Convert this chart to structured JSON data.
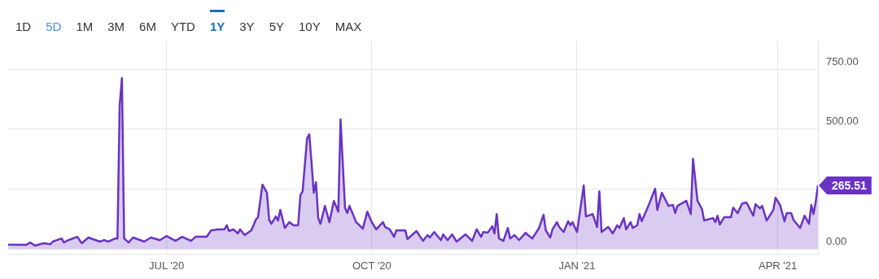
{
  "chart_data": {
    "type": "area",
    "x": [
      "2020-04-21",
      "2020-04-29",
      "2020-05-01",
      "2020-05-03",
      "2020-05-07",
      "2020-05-10",
      "2020-05-11",
      "2020-05-15",
      "2020-05-16",
      "2020-05-18",
      "2020-05-22",
      "2020-05-24",
      "2020-05-27",
      "2020-06-01",
      "2020-06-03",
      "2020-06-05",
      "2020-06-08",
      "2020-06-09",
      "2020-06-10",
      "2020-06-11",
      "2020-06-12",
      "2020-06-14",
      "2020-06-16",
      "2020-06-21",
      "2020-06-24",
      "2020-06-28",
      "2020-07-01",
      "2020-07-03",
      "2020-07-05",
      "2020-07-08",
      "2020-07-12",
      "2020-07-14",
      "2020-07-19",
      "2020-07-21",
      "2020-07-24",
      "2020-07-27",
      "2020-07-28",
      "2020-07-29",
      "2020-07-31",
      "2020-08-02",
      "2020-08-03",
      "2020-08-05",
      "2020-08-08",
      "2020-08-10",
      "2020-08-11",
      "2020-08-13",
      "2020-08-15",
      "2020-08-16",
      "2020-08-17",
      "2020-08-19",
      "2020-08-20",
      "2020-08-21",
      "2020-08-23",
      "2020-08-25",
      "2020-08-27",
      "2020-08-29",
      "2020-08-30",
      "2020-08-31",
      "2020-09-02",
      "2020-09-03",
      "2020-09-04",
      "2020-09-05",
      "2020-09-06",
      "2020-09-07",
      "2020-09-08",
      "2020-09-10",
      "2020-09-12",
      "2020-09-14",
      "2020-09-16",
      "2020-09-17",
      "2020-09-19",
      "2020-09-20",
      "2020-09-21",
      "2020-09-24",
      "2020-09-27",
      "2020-09-29",
      "2020-10-01",
      "2020-10-03",
      "2020-10-06",
      "2020-10-07",
      "2020-10-09",
      "2020-10-11",
      "2020-10-12",
      "2020-10-16",
      "2020-10-17",
      "2020-10-21",
      "2020-10-24",
      "2020-10-26",
      "2020-10-27",
      "2020-10-29",
      "2020-11-01",
      "2020-11-02",
      "2020-11-04",
      "2020-11-06",
      "2020-11-08",
      "2020-11-12",
      "2020-11-15",
      "2020-11-17",
      "2020-11-19",
      "2020-11-20",
      "2020-11-22",
      "2020-11-24",
      "2020-11-25",
      "2020-11-26",
      "2020-11-27",
      "2020-11-29",
      "2020-12-01",
      "2020-12-02",
      "2020-12-04",
      "2020-12-06",
      "2020-12-09",
      "2020-12-10",
      "2020-12-12",
      "2020-12-15",
      "2020-12-17",
      "2020-12-18",
      "2020-12-20",
      "2020-12-21",
      "2020-12-23",
      "2020-12-24",
      "2020-12-26",
      "2020-12-28",
      "2020-12-29",
      "2020-12-30",
      "2021-01-01",
      "2021-01-04",
      "2021-01-05",
      "2021-01-08",
      "2021-01-10",
      "2021-01-11",
      "2021-01-12",
      "2021-01-15",
      "2021-01-17",
      "2021-01-19",
      "2021-01-20",
      "2021-01-22",
      "2021-01-23",
      "2021-01-25",
      "2021-01-26",
      "2021-01-28",
      "2021-01-29",
      "2021-01-30",
      "2021-02-02",
      "2021-02-05",
      "2021-02-06",
      "2021-02-08",
      "2021-02-11",
      "2021-02-13",
      "2021-02-14",
      "2021-02-15",
      "2021-02-19",
      "2021-02-21",
      "2021-02-22",
      "2021-02-24",
      "2021-02-26",
      "2021-02-27",
      "2021-03-03",
      "2021-03-04",
      "2021-03-05",
      "2021-03-06",
      "2021-03-08",
      "2021-03-11",
      "2021-03-12",
      "2021-03-14",
      "2021-03-16",
      "2021-03-18",
      "2021-03-21",
      "2021-03-22",
      "2021-03-24",
      "2021-03-25",
      "2021-03-27",
      "2021-03-30",
      "2021-03-31",
      "2021-04-02",
      "2021-04-04",
      "2021-04-05",
      "2021-04-07",
      "2021-04-08",
      "2021-04-11",
      "2021-04-13",
      "2021-04-15",
      "2021-04-16",
      "2021-04-17",
      "2021-04-18",
      "2021-04-19"
    ],
    "series": [
      {
        "color": "#6a33c4",
        "values": [
          18,
          17,
          27,
          14,
          24,
          20,
          31,
          44,
          27,
          37,
          51,
          24,
          48,
          31,
          37,
          31,
          44,
          44,
          600,
          714,
          44,
          27,
          48,
          31,
          48,
          37,
          54,
          44,
          34,
          51,
          34,
          51,
          51,
          78,
          82,
          82,
          99,
          75,
          82,
          65,
          82,
          58,
          78,
          122,
          133,
          269,
          235,
          122,
          105,
          136,
          119,
          163,
          88,
          112,
          99,
          99,
          224,
          241,
          462,
          479,
          360,
          235,
          279,
          129,
          105,
          180,
          112,
          201,
          156,
          541,
          173,
          150,
          180,
          112,
          85,
          156,
          112,
          82,
          112,
          92,
          82,
          51,
          78,
          78,
          41,
          75,
          34,
          58,
          48,
          71,
          37,
          61,
          37,
          61,
          31,
          61,
          34,
          82,
          51,
          71,
          68,
          95,
          65,
          146,
          44,
          34,
          88,
          44,
          58,
          37,
          68,
          58,
          44,
          88,
          143,
          78,
          48,
          82,
          112,
          92,
          71,
          116,
          99,
          112,
          71,
          265,
          136,
          146,
          92,
          241,
          71,
          92,
          65,
          99,
          88,
          129,
          82,
          112,
          88,
          99,
          146,
          116,
          180,
          252,
          163,
          235,
          180,
          184,
          150,
          180,
          201,
          146,
          377,
          201,
          167,
          119,
          129,
          112,
          139,
          102,
          133,
          133,
          173,
          150,
          190,
          194,
          139,
          187,
          170,
          180,
          119,
          163,
          214,
          184,
          116,
          150,
          150,
          122,
          88,
          139,
          105,
          184,
          146,
          197,
          265.51
        ]
      }
    ],
    "xlim": [
      "2020-04-21",
      "2021-04-19"
    ],
    "xticks": [
      {
        "value": "2020-07-01",
        "label": "JUL '20"
      },
      {
        "value": "2020-10-01",
        "label": "OCT '20"
      },
      {
        "value": "2021-01-01",
        "label": "JAN '21"
      },
      {
        "value": "2021-04-01",
        "label": "APR '21"
      }
    ],
    "ylim": [
      -20,
      870
    ],
    "yticks": [
      {
        "value": 0,
        "label": "0.00"
      },
      {
        "value": 250,
        "label": null
      },
      {
        "value": 500,
        "label": "500.00"
      },
      {
        "value": 750,
        "label": "750.00"
      }
    ],
    "grid": true,
    "annotations": [
      "1D",
      "5D",
      "1M",
      "3M",
      "6M",
      "YTD",
      "1Y",
      "3Y",
      "5Y",
      "10Y",
      "MAX",
      {
        "text": "265.51",
        "x": "2021-04-19",
        "y": 265.51
      }
    ]
  }
}
